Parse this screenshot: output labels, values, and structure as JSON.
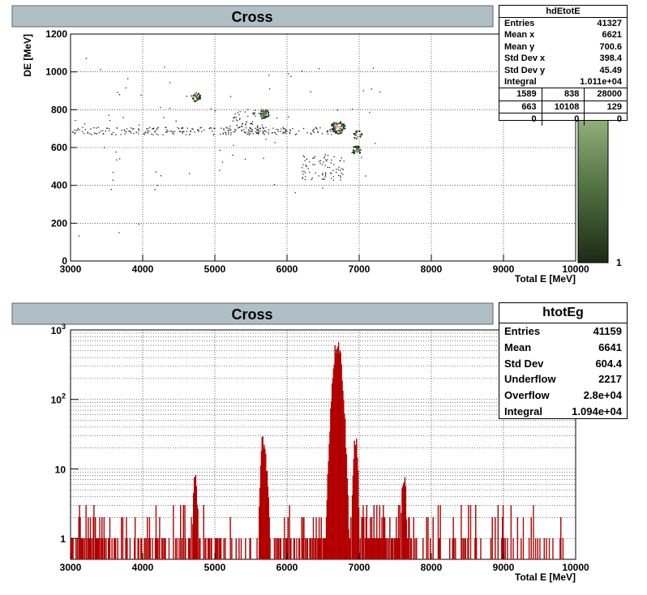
{
  "panels": [
    {
      "title": "Cross",
      "stats": {
        "name": "hdEtotE",
        "rows": [
          {
            "label": "Entries",
            "value": "41327"
          },
          {
            "label": "Mean x",
            "value": "6621"
          },
          {
            "label": "Mean y",
            "value": "700.6"
          },
          {
            "label": "Std Dev x",
            "value": "398.4"
          },
          {
            "label": "Std Dev y",
            "value": "45.49"
          },
          {
            "label": "Integral",
            "value": "1.011e+04"
          }
        ],
        "grid": [
          [
            "1589",
            "838",
            "28000"
          ],
          [
            "663",
            "10108",
            "129"
          ],
          [
            "0",
            "0",
            "0"
          ]
        ]
      }
    },
    {
      "title": "Cross",
      "stats": {
        "name": "htotEg",
        "rows": [
          {
            "label": "Entries",
            "value": "41159"
          },
          {
            "label": "Mean",
            "value": "6641"
          },
          {
            "label": "Std Dev",
            "value": "604.4"
          },
          {
            "label": "Underflow",
            "value": "2217"
          },
          {
            "label": "Overflow",
            "value": "2.8e+04"
          },
          {
            "label": "Integral",
            "value": "1.094e+04"
          }
        ]
      }
    }
  ],
  "chart_data": [
    {
      "type": "heatmap",
      "title": "Cross",
      "xlabel": "Total E [MeV]",
      "ylabel": "DE [MeV]",
      "xlim": [
        3000,
        10000
      ],
      "ylim": [
        0,
        1200
      ],
      "x_ticks": [
        "3000",
        "4000",
        "5000",
        "6000",
        "7000",
        "8000",
        "9000",
        "10000"
      ],
      "y_ticks": [
        "0",
        "200",
        "400",
        "600",
        "800",
        "1000",
        "1200"
      ],
      "colorbar_label": "1",
      "grid": true,
      "clusters": [
        {
          "x": 6700,
          "y": 710,
          "level": "high"
        },
        {
          "x": 5680,
          "y": 780,
          "level": "medium"
        },
        {
          "x": 4730,
          "y": 870,
          "level": "medium"
        },
        {
          "x": 6960,
          "y": 590,
          "level": "medium"
        },
        {
          "x": 6970,
          "y": 670,
          "level": "low"
        }
      ]
    },
    {
      "type": "bar",
      "title": "Cross",
      "xlabel": "Total E [MeV]",
      "ylabel": "",
      "xlim": [
        3000,
        10000
      ],
      "ylim": [
        0.5,
        1000
      ],
      "log_y": true,
      "x_ticks": [
        "3000",
        "4000",
        "5000",
        "6000",
        "7000",
        "8000",
        "9000",
        "10000"
      ],
      "y_ticks": [
        "1",
        "10",
        "10^2",
        "10^3"
      ],
      "grid": true,
      "color": "#ff0000",
      "peaks": [
        {
          "x": 4730,
          "value": 8
        },
        {
          "x": 5660,
          "value": 25
        },
        {
          "x": 5710,
          "value": 12
        },
        {
          "x": 6700,
          "value": 700
        },
        {
          "x": 6950,
          "value": 30
        },
        {
          "x": 7620,
          "value": 9
        }
      ]
    }
  ],
  "colors": {
    "title_bar": "#b0bec5",
    "histogram_fill": "#ff0000",
    "histogram_edge": "#8b0000",
    "colorbar_top": "#8fb07a",
    "colorbar_bottom": "#1c2a15"
  }
}
